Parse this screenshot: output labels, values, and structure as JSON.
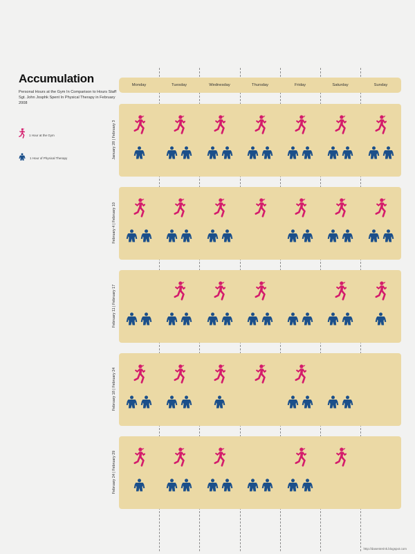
{
  "title": "Accumulation",
  "subtitle": "Personal Hours at the Gym In Comparison to Hours Staff Sgt. John Josphk Spent In Physical Therapy in February 2008",
  "legend": [
    {
      "icon": "runner-icon",
      "label": "1 Hour at the Gym",
      "color": "#d41b6b"
    },
    {
      "icon": "soldier-icon",
      "label": "1 Hour of Physical Therapy",
      "color": "#1b4f8a"
    }
  ],
  "days": [
    "Monday",
    "Tuesday",
    "Wednesday",
    "Thursday",
    "Friday",
    "Saturday",
    "Sunday"
  ],
  "weeks": [
    {
      "label": "January 28 | February 3",
      "gym": [
        1,
        1,
        1,
        1,
        1,
        1,
        1
      ],
      "therapy": [
        1,
        2,
        2,
        2,
        2,
        2,
        2
      ]
    },
    {
      "label": "February 4 | February 10",
      "gym": [
        1,
        1,
        1,
        1,
        1,
        1,
        1
      ],
      "therapy": [
        2,
        2,
        2,
        0,
        2,
        2,
        2
      ]
    },
    {
      "label": "February 11 | February 17",
      "gym": [
        0,
        1,
        1,
        1,
        0,
        1,
        1
      ],
      "therapy": [
        2,
        2,
        2,
        2,
        2,
        2,
        1
      ]
    },
    {
      "label": "February 18 | February 24",
      "gym": [
        1,
        1,
        1,
        1,
        1,
        0,
        0
      ],
      "therapy": [
        2,
        2,
        1,
        0,
        2,
        2,
        0
      ]
    },
    {
      "label": "February 24 | February 29",
      "gym": [
        1,
        1,
        1,
        0,
        1,
        1,
        0
      ],
      "therapy": [
        1,
        2,
        2,
        2,
        2,
        0,
        0
      ]
    }
  ],
  "credit": "http://dasenterink.blogspot.com"
}
